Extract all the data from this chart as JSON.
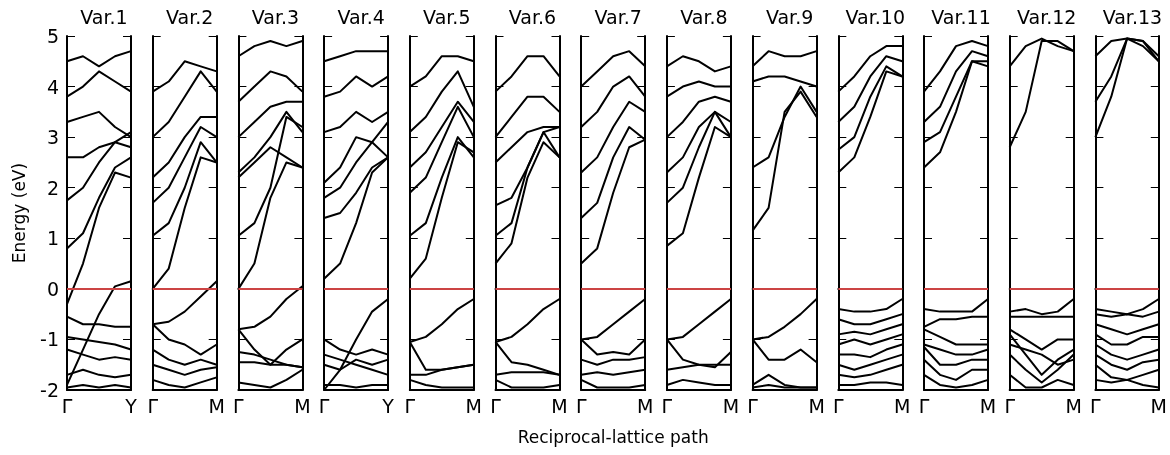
{
  "chart_data": [
    {
      "type": "line",
      "title": "Var.1",
      "ylabel": "Energy (eV)",
      "categories": [
        "Γ",
        null,
        null,
        null,
        "Y"
      ],
      "ylim": [
        -2,
        5
      ],
      "yticks": [
        -2,
        -1,
        0,
        1,
        2,
        3,
        4,
        5
      ],
      "grid": false,
      "marker": "none",
      "line_style": "solid",
      "ref_lines": [
        {
          "axis": "y",
          "value": 0,
          "label": null,
          "color": "#cc4444"
        }
      ],
      "series": [
        {
          "color": "#000000",
          "values": [
            0.8,
            1.1,
            1.8,
            2.4,
            2.6
          ]
        },
        {
          "color": "#000000",
          "values": [
            -0.3,
            0.5,
            1.6,
            2.3,
            2.2
          ]
        },
        {
          "color": "#000000",
          "values": [
            -1.9,
            -1.2,
            -0.5,
            0.05,
            0.15
          ]
        },
        {
          "color": "#000000",
          "values": [
            1.75,
            2.0,
            2.5,
            2.9,
            3.1
          ]
        },
        {
          "color": "#000000",
          "values": [
            2.6,
            2.6,
            2.8,
            2.9,
            2.8
          ]
        },
        {
          "color": "#000000",
          "values": [
            3.3,
            3.4,
            3.5,
            3.2,
            3.0
          ]
        },
        {
          "color": "#000000",
          "values": [
            3.8,
            4.0,
            4.3,
            4.1,
            3.9
          ]
        },
        {
          "color": "#000000",
          "values": [
            4.5,
            4.6,
            4.4,
            4.6,
            4.7
          ]
        },
        {
          "color": "#000000",
          "values": [
            -0.55,
            -0.7,
            -0.7,
            -0.75,
            -0.75
          ]
        },
        {
          "color": "#000000",
          "values": [
            -0.95,
            -1.0,
            -1.05,
            -1.1,
            -1.2
          ]
        },
        {
          "color": "#000000",
          "values": [
            -1.2,
            -1.3,
            -1.4,
            -1.35,
            -1.4
          ]
        },
        {
          "color": "#000000",
          "values": [
            -1.7,
            -1.6,
            -1.7,
            -1.75,
            -1.7
          ]
        },
        {
          "color": "#000000",
          "values": [
            -1.95,
            -1.9,
            -1.95,
            -1.9,
            -1.95
          ]
        }
      ]
    },
    {
      "type": "line",
      "title": "Var.2",
      "categories": [
        "Γ",
        null,
        null,
        null,
        "M"
      ],
      "ylim": [
        -2,
        5
      ],
      "yticks": [
        -2,
        -1,
        0,
        1,
        2,
        3,
        4,
        5
      ],
      "tick_labels": "x",
      "grid": false,
      "marker": "none",
      "line_style": "solid",
      "ref_lines": [
        {
          "axis": "y",
          "value": 0,
          "label": null,
          "color": "#cc4444"
        }
      ],
      "series": [
        {
          "color": "#000000",
          "values": [
            0.0,
            0.4,
            1.6,
            2.6,
            2.5
          ]
        },
        {
          "color": "#000000",
          "values": [
            1.05,
            1.3,
            2.0,
            2.9,
            2.5
          ]
        },
        {
          "color": "#000000",
          "values": [
            1.7,
            2.0,
            2.6,
            3.2,
            3.0
          ]
        },
        {
          "color": "#000000",
          "values": [
            2.2,
            2.5,
            3.0,
            3.4,
            3.4
          ]
        },
        {
          "color": "#000000",
          "values": [
            3.0,
            3.3,
            3.8,
            4.3,
            3.9
          ]
        },
        {
          "color": "#000000",
          "values": [
            3.9,
            4.1,
            4.5,
            4.4,
            4.3
          ]
        },
        {
          "color": "#000000",
          "values": [
            -0.7,
            -0.65,
            -0.45,
            -0.15,
            0.15
          ]
        },
        {
          "color": "#000000",
          "values": [
            -0.7,
            -1.0,
            -1.1,
            -1.3,
            -1.1
          ]
        },
        {
          "color": "#000000",
          "values": [
            -1.2,
            -1.4,
            -1.5,
            -1.4,
            -1.5
          ]
        },
        {
          "color": "#000000",
          "values": [
            -1.5,
            -1.6,
            -1.7,
            -1.6,
            -1.55
          ]
        },
        {
          "color": "#000000",
          "values": [
            -1.8,
            -1.9,
            -1.95,
            -1.85,
            -1.75
          ]
        }
      ]
    },
    {
      "type": "line",
      "title": "Var.3",
      "categories": [
        "Γ",
        null,
        null,
        null,
        "M"
      ],
      "ylim": [
        -2,
        5
      ],
      "yticks": [
        -2,
        -1,
        0,
        1,
        2,
        3,
        4,
        5
      ],
      "tick_labels": "x",
      "grid": false,
      "marker": "none",
      "line_style": "solid",
      "ref_lines": [
        {
          "axis": "y",
          "value": 0,
          "label": null,
          "color": "#cc4444"
        }
      ],
      "series": [
        {
          "color": "#000000",
          "values": [
            0.0,
            0.5,
            1.8,
            2.5,
            2.4
          ]
        },
        {
          "color": "#000000",
          "values": [
            1.05,
            1.3,
            2.0,
            3.4,
            3.2
          ]
        },
        {
          "color": "#000000",
          "values": [
            2.2,
            2.5,
            2.8,
            2.6,
            2.4
          ]
        },
        {
          "color": "#000000",
          "values": [
            2.3,
            2.6,
            3.0,
            3.5,
            3.1
          ]
        },
        {
          "color": "#000000",
          "values": [
            3.0,
            3.3,
            3.6,
            3.7,
            3.7
          ]
        },
        {
          "color": "#000000",
          "values": [
            3.7,
            4.0,
            4.3,
            4.2,
            3.9
          ]
        },
        {
          "color": "#000000",
          "values": [
            4.6,
            4.8,
            4.9,
            4.8,
            4.9
          ]
        },
        {
          "color": "#000000",
          "values": [
            -0.8,
            -0.75,
            -0.55,
            -0.2,
            0.05
          ]
        },
        {
          "color": "#000000",
          "values": [
            -0.8,
            -1.2,
            -1.5,
            -1.2,
            -1.0
          ]
        },
        {
          "color": "#000000",
          "values": [
            -1.25,
            -1.3,
            -1.4,
            -1.5,
            -1.55
          ]
        },
        {
          "color": "#000000",
          "values": [
            -1.45,
            -1.45,
            -1.5,
            -1.5,
            -1.55
          ]
        },
        {
          "color": "#000000",
          "values": [
            -1.85,
            -1.9,
            -1.95,
            -1.8,
            -1.6
          ]
        }
      ]
    },
    {
      "type": "line",
      "title": "Var.4",
      "categories": [
        "Γ",
        null,
        null,
        null,
        "Y"
      ],
      "ylim": [
        -2,
        5
      ],
      "yticks": [
        -2,
        -1,
        0,
        1,
        2,
        3,
        4,
        5
      ],
      "tick_labels": "x",
      "grid": false,
      "marker": "none",
      "line_style": "solid",
      "ref_lines": [
        {
          "axis": "y",
          "value": 0,
          "label": null,
          "color": "#cc4444"
        }
      ],
      "series": [
        {
          "color": "#000000",
          "values": [
            0.2,
            0.5,
            1.3,
            2.3,
            2.6
          ]
        },
        {
          "color": "#000000",
          "values": [
            1.4,
            1.5,
            1.9,
            2.4,
            2.6
          ]
        },
        {
          "color": "#000000",
          "values": [
            1.8,
            2.0,
            2.5,
            2.9,
            2.6
          ]
        },
        {
          "color": "#000000",
          "values": [
            2.1,
            2.4,
            3.0,
            2.9,
            3.3
          ]
        },
        {
          "color": "#000000",
          "values": [
            3.1,
            3.2,
            3.5,
            3.3,
            3.5
          ]
        },
        {
          "color": "#000000",
          "values": [
            3.8,
            3.9,
            4.2,
            4.0,
            4.2
          ]
        },
        {
          "color": "#000000",
          "values": [
            4.5,
            4.6,
            4.7,
            4.7,
            4.7
          ]
        },
        {
          "color": "#000000",
          "values": [
            -1.0,
            -1.2,
            -1.3,
            -1.2,
            -1.3
          ]
        },
        {
          "color": "#000000",
          "values": [
            -2.0,
            -1.6,
            -1.0,
            -0.45,
            -0.2
          ]
        },
        {
          "color": "#000000",
          "values": [
            -1.3,
            -1.4,
            -1.5,
            -1.6,
            -1.7
          ]
        },
        {
          "color": "#000000",
          "values": [
            -1.5,
            -1.6,
            -1.4,
            -1.5,
            -1.4
          ]
        },
        {
          "color": "#000000",
          "values": [
            -1.9,
            -1.9,
            -1.95,
            -1.9,
            -1.9
          ]
        }
      ]
    },
    {
      "type": "line",
      "title": "Var.5",
      "categories": [
        "Γ",
        null,
        null,
        null,
        "M"
      ],
      "ylim": [
        -2,
        5
      ],
      "yticks": [
        -2,
        -1,
        0,
        1,
        2,
        3,
        4,
        5
      ],
      "tick_labels": "x",
      "grid": false,
      "marker": "none",
      "line_style": "solid",
      "ref_lines": [
        {
          "axis": "y",
          "value": 0,
          "label": null,
          "color": "#cc4444"
        }
      ],
      "series": [
        {
          "color": "#000000",
          "values": [
            0.2,
            0.6,
            1.8,
            2.9,
            2.7
          ]
        },
        {
          "color": "#000000",
          "values": [
            1.05,
            1.3,
            2.2,
            3.0,
            2.6
          ]
        },
        {
          "color": "#000000",
          "values": [
            1.9,
            2.2,
            2.9,
            3.6,
            3.0
          ]
        },
        {
          "color": "#000000",
          "values": [
            2.4,
            2.7,
            3.2,
            3.7,
            3.3
          ]
        },
        {
          "color": "#000000",
          "values": [
            3.1,
            3.4,
            3.9,
            4.3,
            3.6
          ]
        },
        {
          "color": "#000000",
          "values": [
            4.0,
            4.2,
            4.6,
            4.6,
            4.5
          ]
        },
        {
          "color": "#000000",
          "values": [
            -1.05,
            -0.95,
            -0.7,
            -0.4,
            -0.2
          ]
        },
        {
          "color": "#000000",
          "values": [
            -1.05,
            -1.6,
            -1.6,
            -1.55,
            -1.5
          ]
        },
        {
          "color": "#000000",
          "values": [
            -1.7,
            -1.7,
            -1.6,
            -1.55,
            -1.5
          ]
        },
        {
          "color": "#000000",
          "values": [
            -1.8,
            -1.9,
            -1.95,
            -1.95,
            -1.95
          ]
        }
      ]
    },
    {
      "type": "line",
      "title": "Var.6",
      "categories": [
        "Γ",
        null,
        null,
        null,
        "M"
      ],
      "ylim": [
        -2,
        5
      ],
      "yticks": [
        -2,
        -1,
        0,
        1,
        2,
        3,
        4,
        5
      ],
      "tick_labels": "x",
      "grid": false,
      "marker": "none",
      "line_style": "solid",
      "ref_lines": [
        {
          "axis": "y",
          "value": 0,
          "label": null,
          "color": "#cc4444"
        }
      ],
      "series": [
        {
          "color": "#000000",
          "values": [
            0.5,
            0.9,
            2.2,
            2.9,
            2.6
          ]
        },
        {
          "color": "#000000",
          "values": [
            1.05,
            1.3,
            2.4,
            3.1,
            2.6
          ]
        },
        {
          "color": "#000000",
          "values": [
            1.65,
            1.8,
            2.4,
            3.1,
            3.2
          ]
        },
        {
          "color": "#000000",
          "values": [
            2.5,
            2.8,
            3.1,
            3.2,
            3.2
          ]
        },
        {
          "color": "#000000",
          "values": [
            3.0,
            3.4,
            3.8,
            3.8,
            3.5
          ]
        },
        {
          "color": "#000000",
          "values": [
            3.9,
            4.2,
            4.6,
            4.6,
            4.2
          ]
        },
        {
          "color": "#000000",
          "values": [
            -1.05,
            -0.95,
            -0.7,
            -0.4,
            -0.2
          ]
        },
        {
          "color": "#000000",
          "values": [
            -1.05,
            -1.45,
            -1.5,
            -1.6,
            -1.7
          ]
        },
        {
          "color": "#000000",
          "values": [
            -1.7,
            -1.65,
            -1.65,
            -1.65,
            -1.7
          ]
        },
        {
          "color": "#000000",
          "values": [
            -1.8,
            -1.95,
            -1.95,
            -1.95,
            -1.9
          ]
        }
      ]
    },
    {
      "type": "line",
      "title": "Var.7",
      "xlabel": "Reciprocal-lattice path",
      "categories": [
        "Γ",
        null,
        null,
        null,
        "M"
      ],
      "ylim": [
        -2,
        5
      ],
      "yticks": [
        -2,
        -1,
        0,
        1,
        2,
        3,
        4,
        5
      ],
      "tick_labels": "x",
      "grid": false,
      "marker": "none",
      "line_style": "solid",
      "ref_lines": [
        {
          "axis": "y",
          "value": 0,
          "label": null,
          "color": "#cc4444"
        }
      ],
      "series": [
        {
          "color": "#000000",
          "values": [
            0.5,
            0.8,
            1.9,
            2.8,
            2.95
          ]
        },
        {
          "color": "#000000",
          "values": [
            1.4,
            1.7,
            2.6,
            3.2,
            2.95
          ]
        },
        {
          "color": "#000000",
          "values": [
            2.3,
            2.6,
            3.2,
            3.7,
            3.5
          ]
        },
        {
          "color": "#000000",
          "values": [
            3.2,
            3.5,
            4.0,
            4.2,
            3.8
          ]
        },
        {
          "color": "#000000",
          "values": [
            4.0,
            4.3,
            4.6,
            4.7,
            4.4
          ]
        },
        {
          "color": "#000000",
          "values": [
            -1.0,
            -0.95,
            -0.7,
            -0.45,
            -0.2
          ]
        },
        {
          "color": "#000000",
          "values": [
            -1.0,
            -1.3,
            -1.25,
            -1.3,
            -1.0
          ]
        },
        {
          "color": "#000000",
          "values": [
            -1.4,
            -1.5,
            -1.4,
            -1.4,
            -1.35
          ]
        },
        {
          "color": "#000000",
          "values": [
            -1.7,
            -1.65,
            -1.7,
            -1.65,
            -1.6
          ]
        },
        {
          "color": "#000000",
          "values": [
            -1.8,
            -1.95,
            -1.95,
            -1.95,
            -1.9
          ]
        }
      ]
    },
    {
      "type": "line",
      "title": "Var.8",
      "categories": [
        "Γ",
        null,
        null,
        null,
        "M"
      ],
      "ylim": [
        -2,
        5
      ],
      "yticks": [
        -2,
        -1,
        0,
        1,
        2,
        3,
        4,
        5
      ],
      "tick_labels": "x",
      "grid": false,
      "marker": "none",
      "line_style": "solid",
      "ref_lines": [
        {
          "axis": "y",
          "value": 0,
          "label": null,
          "color": "#cc4444"
        }
      ],
      "series": [
        {
          "color": "#000000",
          "values": [
            0.85,
            1.1,
            2.2,
            3.2,
            3.0
          ]
        },
        {
          "color": "#000000",
          "values": [
            1.7,
            2.0,
            2.8,
            3.5,
            3.0
          ]
        },
        {
          "color": "#000000",
          "values": [
            2.3,
            2.6,
            3.2,
            3.5,
            3.3
          ]
        },
        {
          "color": "#000000",
          "values": [
            3.0,
            3.3,
            3.7,
            3.8,
            3.7
          ]
        },
        {
          "color": "#000000",
          "values": [
            3.8,
            4.0,
            4.1,
            4.0,
            4.0
          ]
        },
        {
          "color": "#000000",
          "values": [
            4.4,
            4.6,
            4.5,
            4.3,
            4.4
          ]
        },
        {
          "color": "#000000",
          "values": [
            -1.0,
            -0.95,
            -0.7,
            -0.45,
            -0.2
          ]
        },
        {
          "color": "#000000",
          "values": [
            -1.0,
            -1.4,
            -1.5,
            -1.55,
            -1.25
          ]
        },
        {
          "color": "#000000",
          "values": [
            -1.6,
            -1.55,
            -1.5,
            -1.5,
            -1.5
          ]
        },
        {
          "color": "#000000",
          "values": [
            -1.9,
            -1.8,
            -1.85,
            -1.9,
            -1.9
          ]
        }
      ]
    },
    {
      "type": "line",
      "title": "Var.9",
      "categories": [
        "Γ",
        null,
        null,
        null,
        "M"
      ],
      "ylim": [
        -2,
        5
      ],
      "yticks": [
        -2,
        -1,
        0,
        1,
        2,
        3,
        4,
        5
      ],
      "tick_labels": "x",
      "grid": false,
      "marker": "none",
      "line_style": "solid",
      "ref_lines": [
        {
          "axis": "y",
          "value": 0,
          "label": null,
          "color": "#cc4444"
        }
      ],
      "series": [
        {
          "color": "#000000",
          "values": [
            1.15,
            1.6,
            3.5,
            3.9,
            3.4
          ]
        },
        {
          "color": "#000000",
          "values": [
            2.4,
            2.6,
            3.4,
            4.0,
            3.5
          ]
        },
        {
          "color": "#000000",
          "values": [
            4.1,
            4.2,
            4.2,
            4.1,
            4.0
          ]
        },
        {
          "color": "#000000",
          "values": [
            4.4,
            4.7,
            4.6,
            4.6,
            4.7
          ]
        },
        {
          "color": "#000000",
          "values": [
            -1.0,
            -0.95,
            -0.75,
            -0.5,
            -0.2
          ]
        },
        {
          "color": "#000000",
          "values": [
            -1.0,
            -1.4,
            -1.4,
            -1.2,
            -1.45
          ]
        },
        {
          "color": "#000000",
          "values": [
            -1.9,
            -1.7,
            -1.9,
            -1.95,
            -1.95
          ]
        },
        {
          "color": "#000000",
          "values": [
            -1.95,
            -1.9,
            -1.95,
            -1.95,
            -1.95
          ]
        }
      ]
    },
    {
      "type": "line",
      "title": "Var.10",
      "categories": [
        "Γ",
        null,
        null,
        null,
        "M"
      ],
      "ylim": [
        -2,
        5
      ],
      "yticks": [
        -2,
        -1,
        0,
        1,
        2,
        3,
        4,
        5
      ],
      "tick_labels": "x",
      "grid": false,
      "marker": "none",
      "line_style": "solid",
      "ref_lines": [
        {
          "axis": "y",
          "value": 0,
          "label": null,
          "color": "#cc4444"
        }
      ],
      "series": [
        {
          "color": "#000000",
          "values": [
            2.3,
            2.6,
            3.4,
            4.3,
            4.2
          ]
        },
        {
          "color": "#000000",
          "values": [
            2.75,
            3.0,
            3.8,
            4.4,
            4.2
          ]
        },
        {
          "color": "#000000",
          "values": [
            3.3,
            3.6,
            4.2,
            4.6,
            4.5
          ]
        },
        {
          "color": "#000000",
          "values": [
            3.9,
            4.2,
            4.6,
            4.8,
            4.8
          ]
        },
        {
          "color": "#000000",
          "values": [
            -0.4,
            -0.45,
            -0.45,
            -0.4,
            -0.2
          ]
        },
        {
          "color": "#000000",
          "values": [
            -0.6,
            -0.7,
            -0.7,
            -0.6,
            -0.5
          ]
        },
        {
          "color": "#000000",
          "values": [
            -0.9,
            -0.85,
            -0.9,
            -0.8,
            -0.7
          ]
        },
        {
          "color": "#000000",
          "values": [
            -1.1,
            -1.0,
            -1.1,
            -1.0,
            -0.9
          ]
        },
        {
          "color": "#000000",
          "values": [
            -1.3,
            -1.3,
            -1.35,
            -1.2,
            -1.1
          ]
        },
        {
          "color": "#000000",
          "values": [
            -1.5,
            -1.6,
            -1.5,
            -1.4,
            -1.3
          ]
        },
        {
          "color": "#000000",
          "values": [
            -1.7,
            -1.75,
            -1.7,
            -1.6,
            -1.5
          ]
        },
        {
          "color": "#000000",
          "values": [
            -1.9,
            -1.9,
            -1.85,
            -1.85,
            -1.9
          ]
        }
      ]
    },
    {
      "type": "line",
      "title": "Var.11",
      "categories": [
        "Γ",
        null,
        null,
        null,
        "M"
      ],
      "ylim": [
        -2,
        5
      ],
      "yticks": [
        -2,
        -1,
        0,
        1,
        2,
        3,
        4,
        5
      ],
      "tick_labels": "x",
      "grid": false,
      "marker": "none",
      "line_style": "solid",
      "ref_lines": [
        {
          "axis": "y",
          "value": 0,
          "label": null,
          "color": "#cc4444"
        }
      ],
      "series": [
        {
          "color": "#000000",
          "values": [
            2.4,
            2.7,
            3.5,
            4.5,
            4.4
          ]
        },
        {
          "color": "#000000",
          "values": [
            2.9,
            3.1,
            3.8,
            4.5,
            4.5
          ]
        },
        {
          "color": "#000000",
          "values": [
            3.3,
            3.6,
            4.3,
            4.7,
            4.6
          ]
        },
        {
          "color": "#000000",
          "values": [
            3.9,
            4.3,
            4.8,
            4.9,
            4.8
          ]
        },
        {
          "color": "#000000",
          "values": [
            -0.4,
            -0.45,
            -0.45,
            -0.45,
            -0.2
          ]
        },
        {
          "color": "#000000",
          "values": [
            -0.75,
            -0.6,
            -0.6,
            -0.55,
            -0.55
          ]
        },
        {
          "color": "#000000",
          "values": [
            -0.8,
            -0.95,
            -1.1,
            -1.1,
            -1.1
          ]
        },
        {
          "color": "#000000",
          "values": [
            -1.1,
            -1.2,
            -1.3,
            -1.3,
            -1.2
          ]
        },
        {
          "color": "#000000",
          "values": [
            -1.15,
            -1.5,
            -1.5,
            -1.4,
            -1.4
          ]
        },
        {
          "color": "#000000",
          "values": [
            -1.4,
            -1.7,
            -1.8,
            -1.6,
            -1.6
          ]
        },
        {
          "color": "#000000",
          "values": [
            -1.7,
            -1.9,
            -1.95,
            -1.9,
            -1.8
          ]
        }
      ]
    },
    {
      "type": "line",
      "title": "Var.12",
      "categories": [
        "Γ",
        null,
        null,
        null,
        "M"
      ],
      "ylim": [
        -2,
        5
      ],
      "yticks": [
        -2,
        -1,
        0,
        1,
        2,
        3,
        4,
        5
      ],
      "tick_labels": "x",
      "grid": false,
      "marker": "none",
      "line_style": "solid",
      "ref_lines": [
        {
          "axis": "y",
          "value": 0,
          "label": null,
          "color": "#cc4444"
        }
      ],
      "series": [
        {
          "color": "#000000",
          "values": [
            2.8,
            3.5,
            4.9,
            4.9,
            4.7
          ]
        },
        {
          "color": "#000000",
          "values": [
            4.4,
            4.8,
            4.95,
            4.8,
            4.7
          ]
        },
        {
          "color": "#000000",
          "values": [
            -0.45,
            -0.4,
            -0.5,
            -0.45,
            -0.2
          ]
        },
        {
          "color": "#000000",
          "values": [
            -0.55,
            -0.55,
            -0.55,
            -0.55,
            -0.55
          ]
        },
        {
          "color": "#000000",
          "values": [
            -0.8,
            -1.0,
            -1.2,
            -1.0,
            -1.0
          ]
        },
        {
          "color": "#000000",
          "values": [
            -0.9,
            -1.3,
            -1.7,
            -1.4,
            -1.2
          ]
        },
        {
          "color": "#000000",
          "values": [
            -1.1,
            -1.2,
            -1.3,
            -1.5,
            -1.4
          ]
        },
        {
          "color": "#000000",
          "values": [
            -1.3,
            -1.6,
            -1.85,
            -1.6,
            -1.3
          ]
        },
        {
          "color": "#000000",
          "values": [
            -1.7,
            -1.95,
            -1.95,
            -1.8,
            -1.9
          ]
        }
      ]
    },
    {
      "type": "line",
      "title": "Var.13",
      "categories": [
        "Γ",
        null,
        null,
        null,
        "M"
      ],
      "ylim": [
        -2,
        5
      ],
      "yticks": [
        -2,
        -1,
        0,
        1,
        2,
        3,
        4,
        5
      ],
      "tick_labels": "x",
      "grid": false,
      "marker": "none",
      "line_style": "solid",
      "ref_lines": [
        {
          "axis": "y",
          "value": 0,
          "label": null,
          "color": "#cc4444"
        }
      ],
      "series": [
        {
          "color": "#000000",
          "values": [
            3.0,
            3.8,
            4.95,
            4.8,
            4.5
          ]
        },
        {
          "color": "#000000",
          "values": [
            3.7,
            4.2,
            4.95,
            4.9,
            4.5
          ]
        },
        {
          "color": "#000000",
          "values": [
            4.6,
            4.9,
            4.95,
            4.9,
            4.6
          ]
        },
        {
          "color": "#000000",
          "values": [
            -0.4,
            -0.45,
            -0.5,
            -0.4,
            -0.2
          ]
        },
        {
          "color": "#000000",
          "values": [
            -0.5,
            -0.55,
            -0.5,
            -0.55,
            -0.45
          ]
        },
        {
          "color": "#000000",
          "values": [
            -0.7,
            -0.8,
            -0.9,
            -0.8,
            -0.7
          ]
        },
        {
          "color": "#000000",
          "values": [
            -0.9,
            -1.1,
            -1.1,
            -0.95,
            -0.95
          ]
        },
        {
          "color": "#000000",
          "values": [
            -1.1,
            -1.3,
            -1.4,
            -1.3,
            -1.2
          ]
        },
        {
          "color": "#000000",
          "values": [
            -1.3,
            -1.5,
            -1.6,
            -1.45,
            -1.4
          ]
        },
        {
          "color": "#000000",
          "values": [
            -1.5,
            -1.75,
            -1.8,
            -1.7,
            -1.6
          ]
        },
        {
          "color": "#000000",
          "values": [
            -1.8,
            -1.85,
            -1.8,
            -1.9,
            -1.95
          ]
        }
      ]
    }
  ]
}
